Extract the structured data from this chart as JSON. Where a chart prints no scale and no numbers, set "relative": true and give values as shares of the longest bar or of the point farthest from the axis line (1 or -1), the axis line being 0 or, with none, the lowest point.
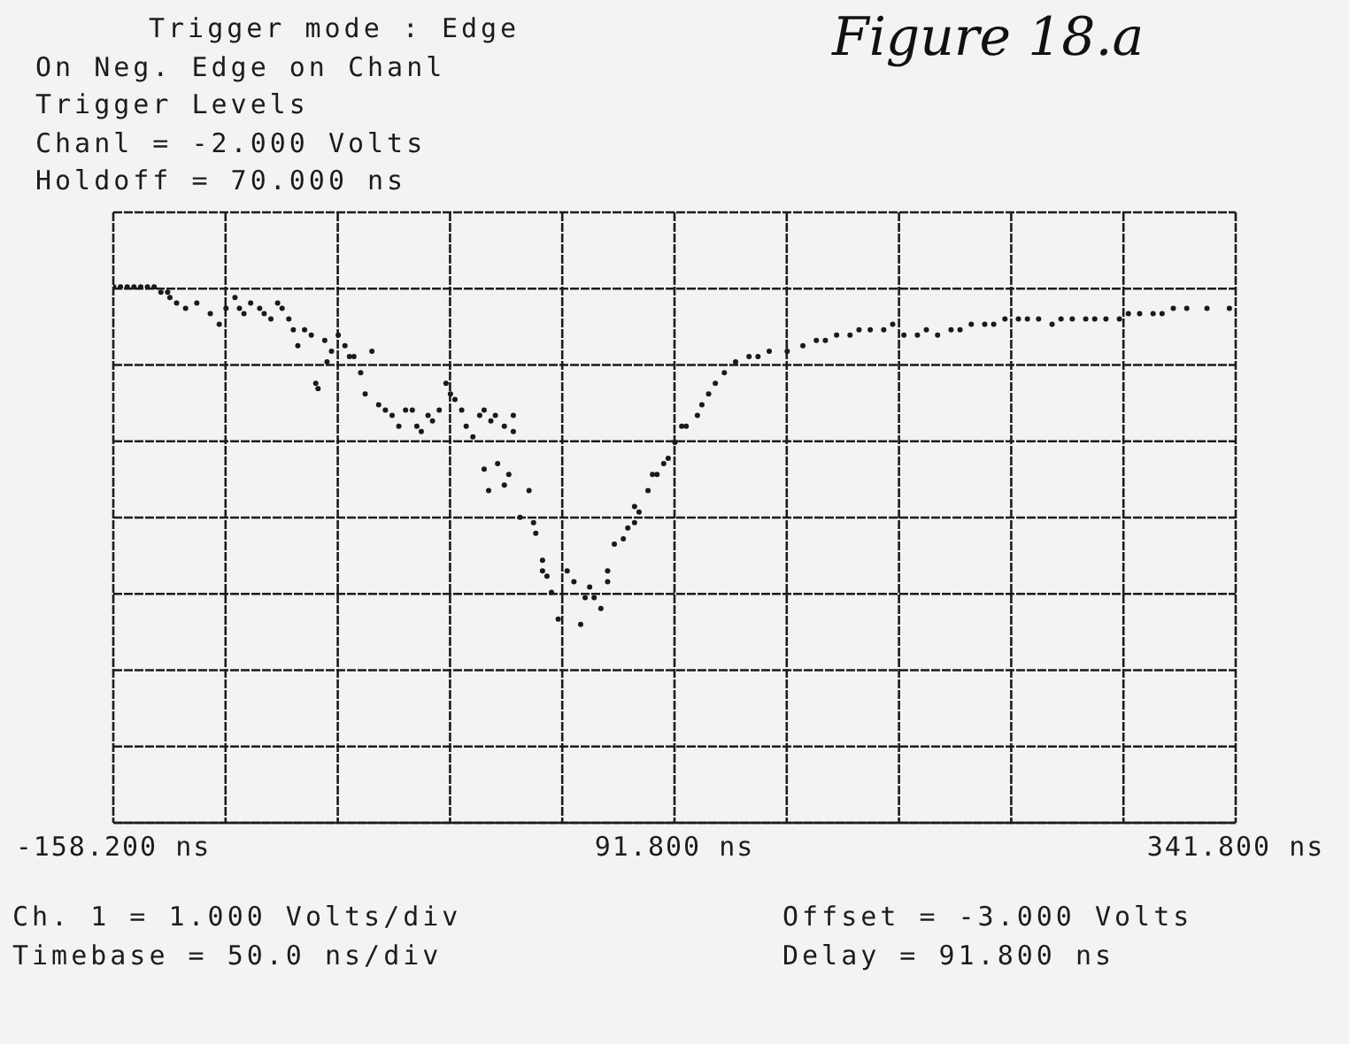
{
  "chart_data": {
    "type": "scatter",
    "title": "Figure 18.a",
    "annotations": [
      "Trigger mode : Edge",
      "On Neg. Edge on Chanl",
      "Trigger Levels",
      "Chanl = -2.000 Volts",
      "Holdoff = 70.000 ns",
      "Ch. 1 = 1.000 Volts/div",
      "Timebase = 50.0 ns/div",
      "Offset = -3.000 Volts",
      "Delay = 91.800 ns"
    ],
    "x": [
      -158,
      -155,
      -152,
      -149,
      -146,
      -143,
      -140,
      -137,
      -134,
      -133,
      -130,
      -126,
      -121,
      -115,
      -111,
      -108,
      -104,
      -102,
      -100,
      -97,
      -93,
      -91,
      -88,
      -85,
      -83,
      -80,
      -78,
      -76,
      -73,
      -70,
      -68,
      -67,
      -64,
      -63,
      -61,
      -58,
      -55,
      -53,
      -51,
      -48,
      -46,
      -43,
      -40,
      -37,
      -34,
      -31,
      -28,
      -25,
      -23,
      -21,
      -18,
      -16,
      -13,
      -10,
      -8,
      -6,
      -3,
      -1,
      2,
      5,
      7,
      10,
      12,
      16,
      20,
      20,
      7,
      9,
      13,
      16,
      18,
      23,
      27,
      29,
      30,
      33,
      35,
      33,
      37,
      40,
      44,
      47,
      50,
      52,
      54,
      56,
      59,
      62,
      62,
      65,
      69,
      71,
      74,
      74,
      76,
      80,
      82,
      84,
      87,
      89,
      92,
      95,
      97,
      102,
      104,
      107,
      110,
      114,
      119,
      125,
      129,
      134,
      142,
      149,
      155,
      159,
      164,
      170,
      174,
      179,
      185,
      189,
      194,
      200,
      204,
      209,
      215,
      219,
      224,
      230,
      234,
      239,
      245,
      249,
      254,
      260,
      264,
      269,
      275,
      279,
      284,
      290,
      294,
      299,
      305,
      309,
      314,
      320,
      329,
      339
    ],
    "values": [
      1,
      1,
      1,
      1,
      1,
      1,
      1,
      0.99,
      0.99,
      0.98,
      0.97,
      0.96,
      0.97,
      0.95,
      0.93,
      0.96,
      0.98,
      0.96,
      0.95,
      0.97,
      0.96,
      0.95,
      0.94,
      0.97,
      0.96,
      0.94,
      0.92,
      0.89,
      0.92,
      0.91,
      0.82,
      0.81,
      0.9,
      0.86,
      0.88,
      0.91,
      0.89,
      0.87,
      0.87,
      0.84,
      0.8,
      0.88,
      0.78,
      0.77,
      0.76,
      0.74,
      0.77,
      0.77,
      0.74,
      0.73,
      0.76,
      0.75,
      0.77,
      0.82,
      0.8,
      0.79,
      0.77,
      0.74,
      0.72,
      0.76,
      0.77,
      0.75,
      0.76,
      0.74,
      0.73,
      0.76,
      0.66,
      0.62,
      0.67,
      0.63,
      0.65,
      0.57,
      0.62,
      0.56,
      0.54,
      0.49,
      0.46,
      0.47,
      0.43,
      0.38,
      0.47,
      0.45,
      0.37,
      0.42,
      0.44,
      0.42,
      0.4,
      0.45,
      0.47,
      0.52,
      0.53,
      0.55,
      0.59,
      0.56,
      0.58,
      0.62,
      0.65,
      0.65,
      0.67,
      0.68,
      0.71,
      0.74,
      0.74,
      0.76,
      0.78,
      0.8,
      0.82,
      0.84,
      0.86,
      0.87,
      0.87,
      0.88,
      0.88,
      0.89,
      0.9,
      0.9,
      0.91,
      0.91,
      0.92,
      0.92,
      0.92,
      0.93,
      0.91,
      0.91,
      0.92,
      0.91,
      0.92,
      0.92,
      0.93,
      0.93,
      0.93,
      0.94,
      0.94,
      0.94,
      0.94,
      0.93,
      0.94,
      0.94,
      0.94,
      0.94,
      0.94,
      0.94,
      0.95,
      0.95,
      0.95,
      0.95,
      0.96,
      0.96,
      0.96,
      0.96
    ],
    "color": "#1a1a1a",
    "relative": true,
    "marker": "circle",
    "grid": true,
    "xlim": [
      -158.2,
      341.8
    ],
    "xticks": [
      {
        "value": -158.2,
        "label": "-158.200 ns"
      },
      {
        "value": -108.2,
        "label": null
      },
      {
        "value": -58.2,
        "label": null
      },
      {
        "value": -8.2,
        "label": null
      },
      {
        "value": 41.8,
        "label": null
      },
      {
        "value": 91.8,
        "label": "91.800 ns"
      },
      {
        "value": 141.8,
        "label": null
      },
      {
        "value": 191.8,
        "label": null
      },
      {
        "value": 241.8,
        "label": null
      },
      {
        "value": 291.8,
        "label": null
      },
      {
        "value": 341.8,
        "label": "341.800 ns"
      }
    ]
  }
}
